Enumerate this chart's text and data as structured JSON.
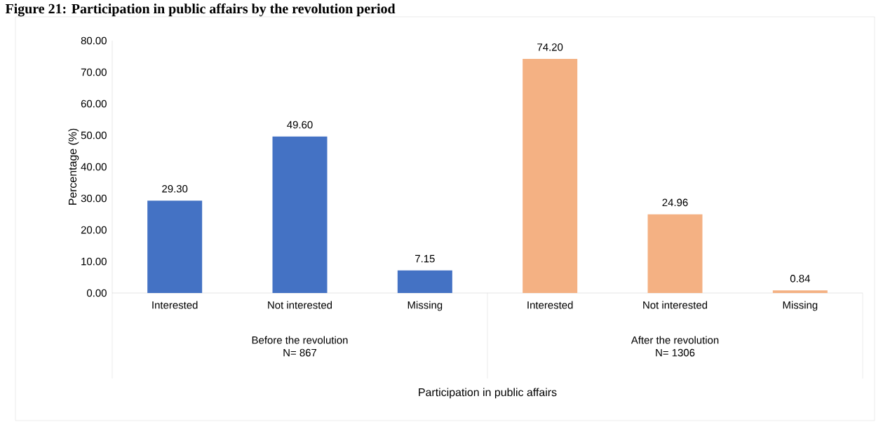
{
  "chart_data": {
    "type": "bar",
    "title": "Figure 21: Participation in public affairs by the revolution period",
    "ylabel": "Percentage (%)",
    "categories": [
      "Interested",
      "Not interested",
      "Missing",
      "Interested",
      "Not interested",
      "Missing"
    ],
    "values": [
      29.3,
      49.6,
      7.15,
      74.2,
      24.96,
      0.84
    ],
    "value_labels": [
      "29.30",
      "49.60",
      "7.15",
      "74.20",
      "24.96",
      "0.84"
    ],
    "colors": [
      "#4472c4",
      "#4472c4",
      "#4472c4",
      "#f4b183",
      "#f4b183",
      "#f4b183"
    ],
    "ylim": [
      0,
      80
    ],
    "yticks": [
      {
        "value": 0,
        "label": "0.00"
      },
      {
        "value": 10,
        "label": "10.00"
      },
      {
        "value": 20,
        "label": "20.00"
      },
      {
        "value": 30,
        "label": "30.00"
      },
      {
        "value": 40,
        "label": "40.00"
      },
      {
        "value": 50,
        "label": "50.00"
      },
      {
        "value": 60,
        "label": "60.00"
      },
      {
        "value": 70,
        "label": "70.00"
      },
      {
        "value": 80,
        "label": "80.00"
      }
    ],
    "annotations": [
      "Before the revolution",
      "N= 867",
      "After the revolution",
      "N= 1306",
      "Participation in public affairs"
    ],
    "grid": false
  }
}
